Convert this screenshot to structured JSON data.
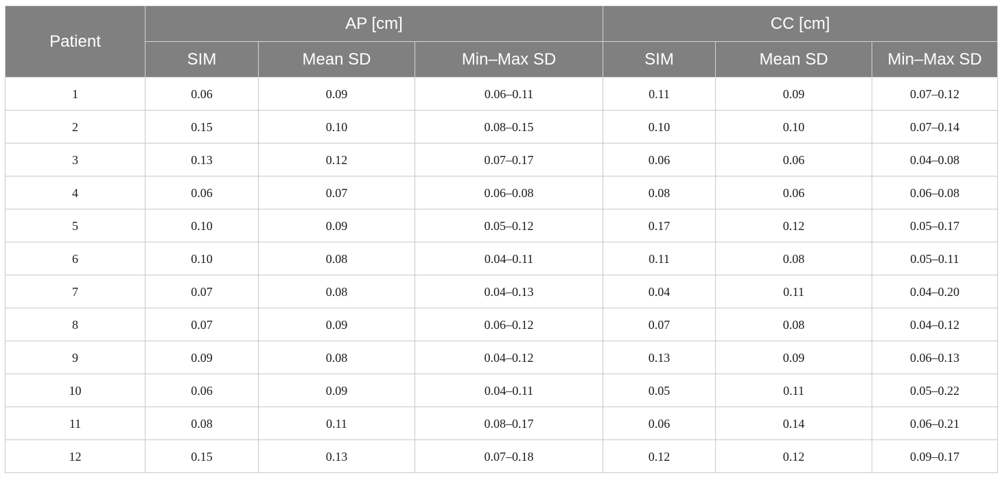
{
  "header": {
    "patient": "Patient",
    "ap_group": "AP [cm]",
    "cc_group": "CC [cm]",
    "sub": [
      "SIM",
      "Mean SD",
      "Min–Max SD",
      "SIM",
      "Mean SD",
      "Min–Max SD"
    ]
  },
  "rows": [
    [
      "1",
      "0.06",
      "0.09",
      "0.06–0.11",
      "0.11",
      "0.09",
      "0.07–0.12"
    ],
    [
      "2",
      "0.15",
      "0.10",
      "0.08–0.15",
      "0.10",
      "0.10",
      "0.07–0.14"
    ],
    [
      "3",
      "0.13",
      "0.12",
      "0.07–0.17",
      "0.06",
      "0.06",
      "0.04–0.08"
    ],
    [
      "4",
      "0.06",
      "0.07",
      "0.06–0.08",
      "0.08",
      "0.06",
      "0.06–0.08"
    ],
    [
      "5",
      "0.10",
      "0.09",
      "0.05–0.12",
      "0.17",
      "0.12",
      "0.05–0.17"
    ],
    [
      "6",
      "0.10",
      "0.08",
      "0.04–0.11",
      "0.11",
      "0.08",
      "0.05–0.11"
    ],
    [
      "7",
      "0.07",
      "0.08",
      "0.04–0.13",
      "0.04",
      "0.11",
      "0.04–0.20"
    ],
    [
      "8",
      "0.07",
      "0.09",
      "0.06–0.12",
      "0.07",
      "0.08",
      "0.04–0.12"
    ],
    [
      "9",
      "0.09",
      "0.08",
      "0.04–0.12",
      "0.13",
      "0.09",
      "0.06–0.13"
    ],
    [
      "10",
      "0.06",
      "0.09",
      "0.04–0.11",
      "0.05",
      "0.11",
      "0.05–0.22"
    ],
    [
      "11",
      "0.08",
      "0.11",
      "0.08–0.17",
      "0.06",
      "0.14",
      "0.06–0.21"
    ],
    [
      "12",
      "0.15",
      "0.13",
      "0.07–0.18",
      "0.12",
      "0.12",
      "0.09–0.17"
    ]
  ]
}
